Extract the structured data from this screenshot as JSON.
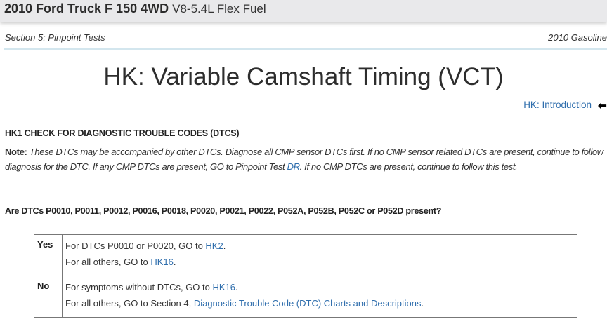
{
  "header": {
    "vehicle": "2010 Ford Truck F 150 4WD",
    "engine": "V8-5.4L Flex Fuel"
  },
  "section": {
    "left": "Section  5:  Pinpoint Tests",
    "right": "2010 Gasoline"
  },
  "page_title": "HK: Variable Camshaft Timing (VCT)",
  "intro_link": "HK: Introduction",
  "arrow_icon": "back-arrow-icon",
  "step_heading": "HK1  CHECK FOR DIAGNOSTIC TROUBLE CODES (DTCS)",
  "note": {
    "label": "Note:",
    "text1": " These DTCs may be accompanied by other DTCs. Diagnose all CMP sensor DTCs first. If no CMP sensor related DTCs are present, continue to follow diagnosis for the DTC. If any CMP DTCs are present, GO to Pinpoint Test ",
    "link": "DR",
    "text2": ". If no CMP DTCs are present, continue to follow this test."
  },
  "question": "Are DTCs P0010, P0011, P0012, P0016, P0018, P0020, P0021, P0022, P052A, P052B, P052C or P052D present?",
  "table": {
    "yes": {
      "label": "Yes",
      "line1": "For DTCs P0010 or P0020, GO to ",
      "link1": "HK2",
      "line2": "For all others, GO to ",
      "link2": "HK16"
    },
    "no": {
      "label": "No",
      "line1": "For symptoms without DTCs, GO to ",
      "link1": "HK16",
      "line2": "For all others, GO to Section 4, ",
      "link2": "Diagnostic Trouble Code (DTC) Charts and Descriptions"
    }
  },
  "colors": {
    "link": "#2f6ead",
    "header_bg": "#e9e9eb"
  }
}
